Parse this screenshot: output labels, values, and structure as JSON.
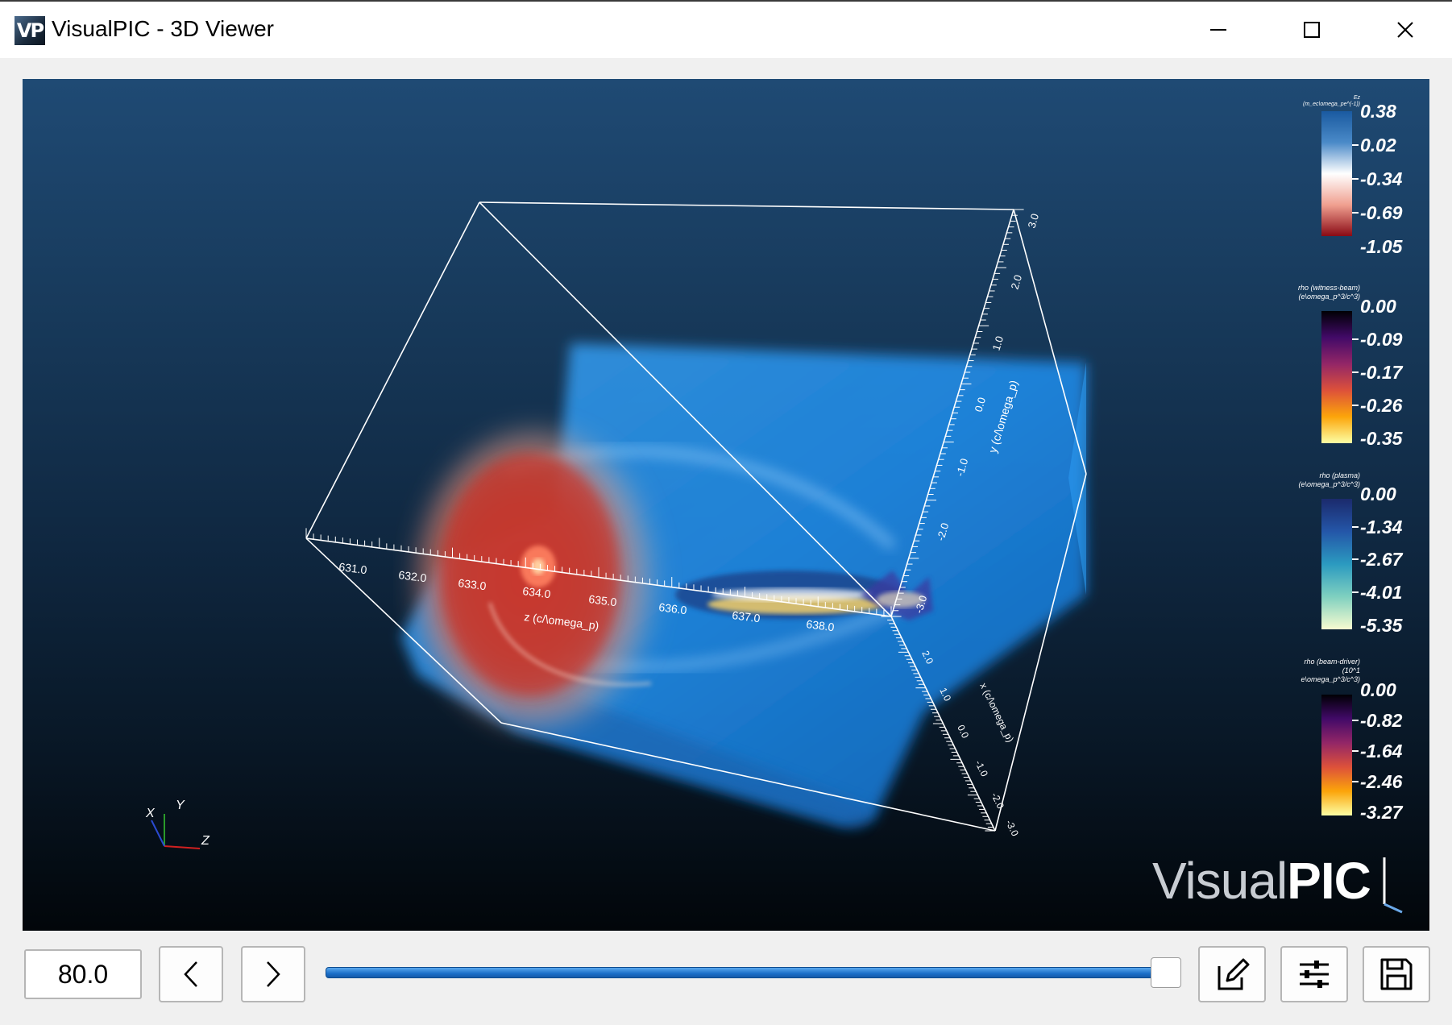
{
  "window": {
    "title": "VisualPIC - 3D Viewer",
    "icon_text": "VP"
  },
  "scene": {
    "z_axis": {
      "label": "z (c/\\omega_p)",
      "ticks": [
        "631.0",
        "632.0",
        "633.0",
        "634.0",
        "635.0",
        "636.0",
        "637.0",
        "638.0"
      ]
    },
    "y_axis": {
      "label": "y (c/\\omega_p)",
      "ticks": [
        "3.0",
        "2.0",
        "1.0",
        "0.0",
        "-1.0",
        "-2.0",
        "-3.0"
      ]
    },
    "x_axis": {
      "label": "x (c/\\omega_p)",
      "ticks": [
        "2.0",
        "1.0",
        "0.0",
        "-1.0",
        "-2.0",
        "-3.0"
      ]
    },
    "orientation_labels": {
      "x": "X",
      "y": "Y",
      "z": "Z"
    }
  },
  "colorbars": [
    {
      "title": "Ez\n(m_ec\\omega_pe^(-1))",
      "ticks": [
        "0.38",
        "0.02",
        "-0.34",
        "-0.69",
        "-1.05"
      ],
      "colormap": [
        "#1a5aa0",
        "#4a8ac8",
        "#ffffff",
        "#f0a090",
        "#8a0a14"
      ]
    },
    {
      "title": "rho (witness-beam)\n(e\\omega_p^3/c^3)",
      "ticks": [
        "0.00",
        "-0.09",
        "-0.17",
        "-0.26",
        "-0.35"
      ],
      "colormap": [
        "#000004",
        "#420a68",
        "#932667",
        "#dd513a",
        "#fca50a",
        "#fcffa4"
      ]
    },
    {
      "title": "rho (plasma)\n(e\\omega_p^3/c^3)",
      "ticks": [
        "0.00",
        "-1.34",
        "-2.67",
        "-4.01",
        "-5.35"
      ],
      "colormap": [
        "#1b2a6c",
        "#2456a8",
        "#2b9ac0",
        "#7fd0c0",
        "#f8fcd0"
      ]
    },
    {
      "title": "rho (beam-driver)\n(10^1\ne\\omega_p^3/c^3)",
      "ticks": [
        "0.00",
        "-0.82",
        "-1.64",
        "-2.46",
        "-3.27"
      ],
      "colormap": [
        "#000004",
        "#420a68",
        "#932667",
        "#dd513a",
        "#fca50a",
        "#fcffa4"
      ]
    }
  ],
  "logo": {
    "text_light": "Visual",
    "text_bold": "PIC"
  },
  "controls": {
    "frame_value": "80.0",
    "slider_fraction": 1.0
  },
  "colors": {
    "slider_blue": "#1b6ec8"
  },
  "icons": {
    "minimize": "minimize-icon",
    "maximize": "maximize-icon",
    "close": "close-icon",
    "prev": "chevron-left-icon",
    "next": "chevron-right-icon",
    "edit": "edit-icon",
    "settings": "sliders-icon",
    "save": "save-icon"
  }
}
